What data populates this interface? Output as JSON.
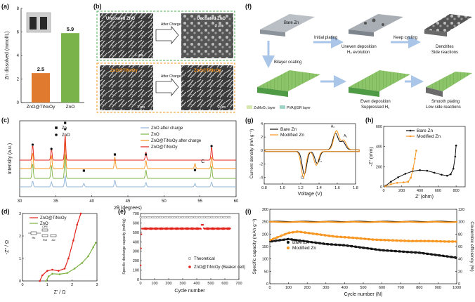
{
  "panels": {
    "a": "(a)",
    "b": "(b)",
    "c": "(c)",
    "d": "(d)",
    "e": "(e)",
    "f": "(f)",
    "g": "(g)",
    "h": "(h)",
    "i": "(i)"
  },
  "colors": {
    "orange": "#f7941d",
    "orange_dark": "#d9661f",
    "green": "#7db343",
    "red": "#e3221c",
    "black": "#111111",
    "blue": "#8fb4d9",
    "gray": "#666666"
  },
  "b": {
    "uncoated_label": "Uncoated ZnO",
    "coated_label": "ZnO@TiNxOy",
    "after_charge": "After Charge",
    "scale1": "1 μm",
    "scale2": "2 μm"
  },
  "f": {
    "bare": "Bare Zn",
    "initial_plating": "Initial plating",
    "uneven": "Uneven deposition",
    "h2": "H₂ evolution",
    "keep": "Keep cycling",
    "dendrites": "Dendrites",
    "side": "Side reactions",
    "bilayer": "Bilayer coating",
    "even": "Even deposition",
    "suppressed": "Suppressed H₂",
    "smooth": "Smooth plating",
    "low_side": "Low side reactions",
    "legend1": "ZnMoO₄ layer",
    "legend2": "PVA@SR layer"
  },
  "chart_data": [
    {
      "id": "a",
      "type": "bar",
      "categories": [
        "ZnO@TiNxOy",
        "ZnO"
      ],
      "values": [
        2.5,
        5.9
      ],
      "value_labels": [
        "2.5",
        "5.9"
      ],
      "ylabel": "Zn dissolved (mmol/L)",
      "ylim": [
        0,
        8
      ],
      "yticks": [
        "0",
        "2",
        "4",
        "6",
        "8"
      ]
    },
    {
      "id": "c",
      "type": "line",
      "xlabel": "2θ (degrees)",
      "ylabel": "Intensity (a.u.)",
      "xlim": [
        30,
        60
      ],
      "xticks": [
        "30",
        "35",
        "40",
        "45",
        "50",
        "55",
        "60"
      ],
      "series": [
        {
          "name": "ZnO after charge",
          "color": "#8fb4d9",
          "peaks": [
            [
              31.8,
              0.6
            ],
            [
              34.4,
              0.5
            ],
            [
              36.3,
              1.2
            ],
            [
              38.9,
              0.35
            ],
            [
              43.2,
              0.7
            ],
            [
              47.5,
              0.45
            ],
            [
              54.3,
              0.35
            ],
            [
              56.6,
              0.5
            ]
          ]
        },
        {
          "name": "ZnO",
          "color": "#7db343",
          "peaks": [
            [
              31.8,
              1.0
            ],
            [
              34.4,
              0.85
            ],
            [
              36.3,
              1.6
            ],
            [
              47.5,
              0.55
            ],
            [
              56.6,
              0.85
            ]
          ]
        },
        {
          "name": "ZnO@TiNxOy after charge",
          "color": "#f7941d",
          "peaks": [
            [
              31.8,
              1.0
            ],
            [
              34.4,
              0.8
            ],
            [
              36.3,
              1.7
            ],
            [
              43.2,
              0.7
            ],
            [
              47.5,
              0.5
            ],
            [
              54.3,
              0.3
            ],
            [
              56.6,
              0.75
            ]
          ]
        },
        {
          "name": "ZnO@TiNxOy",
          "color": "#e3221c",
          "peaks": [
            [
              31.8,
              1.0
            ],
            [
              34.4,
              0.8
            ],
            [
              36.3,
              1.7
            ],
            [
              47.5,
              0.55
            ],
            [
              56.6,
              0.9
            ]
          ]
        }
      ],
      "legend_markers": [
        {
          "symbol": "square",
          "label": "Zn"
        },
        {
          "symbol": "circle",
          "label": "ZnO"
        }
      ],
      "annotation": "C"
    },
    {
      "id": "d",
      "type": "line",
      "xlabel": "Z' / Ω",
      "ylabel": "-Z'' / Ω",
      "xlim": [
        0,
        3
      ],
      "ylim": [
        0,
        3
      ],
      "xticks": [
        "0",
        "1",
        "2",
        "3"
      ],
      "yticks": [
        "0",
        "1",
        "2",
        "3"
      ],
      "series": [
        {
          "name": "ZnO@TiNxOy",
          "color": "#e3221c",
          "points": [
            [
              0.7,
              0.0
            ],
            [
              0.8,
              0.25
            ],
            [
              1.0,
              0.45
            ],
            [
              1.2,
              0.5
            ],
            [
              1.45,
              0.45
            ],
            [
              1.7,
              0.55
            ],
            [
              1.85,
              1.0
            ],
            [
              2.05,
              1.8
            ],
            [
              2.2,
              2.5
            ],
            [
              2.35,
              3.0
            ]
          ]
        },
        {
          "name": "ZnO",
          "color": "#7db343",
          "points": [
            [
              0.95,
              0.0
            ],
            [
              1.05,
              0.2
            ],
            [
              1.2,
              0.32
            ],
            [
              1.5,
              0.3
            ],
            [
              1.8,
              0.35
            ],
            [
              2.1,
              0.55
            ],
            [
              2.4,
              0.8
            ],
            [
              2.65,
              1.1
            ],
            [
              2.85,
              1.5
            ],
            [
              2.95,
              1.7
            ]
          ]
        }
      ],
      "circuit": {
        "r1": "Rs",
        "cpe": "CPE",
        "r2": "Rct",
        "w": "Zw"
      }
    },
    {
      "id": "e",
      "type": "scatter",
      "xlabel": "Cycle number",
      "ylabel": "Specific discharge capacity (mAh/g)",
      "xlim": [
        0,
        700
      ],
      "ylim": [
        0,
        700
      ],
      "xticks": [
        "0",
        "100",
        "200",
        "300",
        "400",
        "500",
        "600",
        "700"
      ],
      "yticks": [
        "0",
        "100",
        "200",
        "300",
        "400",
        "500",
        "600",
        "700"
      ],
      "series": [
        {
          "name": "Theoretical",
          "color": "#666666",
          "value": 660
        },
        {
          "name": "ZnO@TiNxOy (Beaker cell)",
          "color": "#e3221c",
          "start": [
            [
              1,
              150
            ],
            [
              3,
              330
            ],
            [
              6,
              480
            ],
            [
              10,
              540
            ]
          ],
          "level": 540,
          "bump_at": 440,
          "bump_value": 580
        }
      ]
    },
    {
      "id": "g",
      "type": "line",
      "xlabel": "Voltage (V)",
      "ylabel": "Current density (mA g⁻¹)",
      "xlim": [
        0.8,
        1.8
      ],
      "ylim": [
        -5,
        4
      ],
      "xticks": [
        "0.8",
        "1.0",
        "1.2",
        "1.4",
        "1.6",
        "1.8"
      ],
      "yticks": [
        "-4",
        "-2",
        "0",
        "2",
        "4"
      ],
      "annotations": [
        "A₁",
        "A₂",
        "C₁",
        "C₂"
      ],
      "series": [
        {
          "name": "Bare Zn",
          "color": "#111111"
        },
        {
          "name": "Modified Zn",
          "color": "#f7941d"
        }
      ]
    },
    {
      "id": "h",
      "type": "line",
      "xlabel": "Z' (ohm)",
      "ylabel": "-Z'' (ohm)",
      "xlim": [
        0,
        900
      ],
      "ylim": [
        0,
        600
      ],
      "xticks": [
        "0",
        "200",
        "400",
        "600",
        "800"
      ],
      "yticks": [
        "0",
        "200",
        "400",
        "600"
      ],
      "series": [
        {
          "name": "Bare Zn",
          "color": "#111111",
          "points": [
            [
              20,
              10
            ],
            [
              80,
              50
            ],
            [
              160,
              95
            ],
            [
              240,
              130
            ],
            [
              320,
              155
            ],
            [
              400,
              165
            ],
            [
              480,
              160
            ],
            [
              560,
              140
            ],
            [
              640,
              120
            ],
            [
              700,
              110
            ],
            [
              740,
              125
            ],
            [
              770,
              180
            ],
            [
              790,
              300
            ],
            [
              800,
              410
            ]
          ]
        },
        {
          "name": "Modified Zn",
          "color": "#f7941d",
          "points": [
            [
              20,
              5
            ],
            [
              80,
              25
            ],
            [
              150,
              40
            ],
            [
              220,
              45
            ],
            [
              270,
              50
            ],
            [
              300,
              90
            ],
            [
              325,
              180
            ],
            [
              345,
              280
            ],
            [
              360,
              360
            ]
          ]
        }
      ]
    },
    {
      "id": "i",
      "type": "scatter",
      "xlabel": "Cycle number (N)",
      "ylabel": "Specific capacity (mAh g⁻¹)",
      "ylabel2": "Coulombic efficiency (%)",
      "xlim": [
        0,
        1000
      ],
      "ylim": [
        0,
        300
      ],
      "y2lim": [
        0,
        120
      ],
      "xticks": [
        "0",
        "100",
        "200",
        "300",
        "400",
        "500",
        "600",
        "700",
        "800",
        "900",
        "1000"
      ],
      "yticks": [
        "0",
        "50",
        "100",
        "150",
        "200",
        "250",
        "300"
      ],
      "y2ticks": [
        "0",
        "20",
        "40",
        "60",
        "80",
        "100",
        "120"
      ],
      "series": [
        {
          "name": "Bare Zn",
          "color": "#111111",
          "points": [
            [
              0,
              170
            ],
            [
              100,
              180
            ],
            [
              200,
              170
            ],
            [
              300,
              160
            ],
            [
              400,
              155
            ],
            [
              500,
              145
            ],
            [
              600,
              135
            ],
            [
              700,
              130
            ],
            [
              800,
              125
            ],
            [
              900,
              115
            ],
            [
              1000,
              105
            ]
          ]
        },
        {
          "name": "Modified Zn",
          "color": "#f7941d",
          "points": [
            [
              0,
              175
            ],
            [
              100,
              205
            ],
            [
              150,
              210
            ],
            [
              250,
              200
            ],
            [
              350,
              190
            ],
            [
              450,
              185
            ],
            [
              550,
              178
            ],
            [
              650,
              175
            ],
            [
              750,
              172
            ],
            [
              850,
              172
            ],
            [
              950,
              170
            ],
            [
              1000,
              170
            ]
          ]
        },
        {
          "name": "Bare Zn CE",
          "color": "#111111",
          "axis": "y2",
          "value": 100
        },
        {
          "name": "Modified Zn CE",
          "color": "#f7941d",
          "axis": "y2",
          "value": 99.5
        }
      ]
    }
  ]
}
